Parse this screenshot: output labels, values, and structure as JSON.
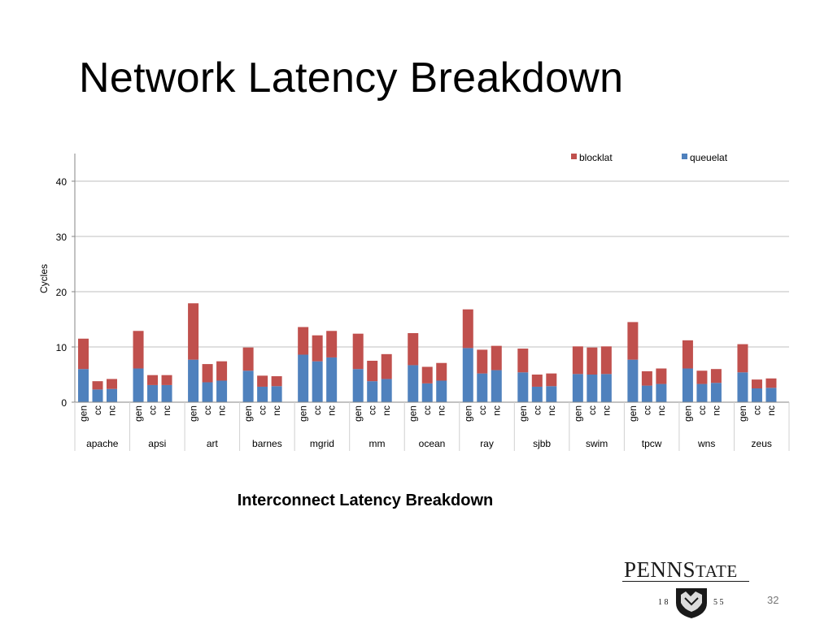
{
  "slide": {
    "title": "Network Latency Breakdown",
    "caption": "Interconnect Latency Breakdown",
    "page_number": "32",
    "logo": {
      "wordmark_part1": "PENN",
      "wordmark_part2": "S",
      "wordmark_part3": "TATE",
      "year_left": "1 8",
      "year_right": "5 5"
    }
  },
  "colors": {
    "blocklat": "#C0504D",
    "queuelat": "#4F81BD",
    "gridline": "#BFBFBF",
    "axis": "#868686"
  },
  "chart_data": {
    "type": "bar",
    "stacked": true,
    "title": "",
    "ylabel": "Cycles",
    "xlabel": "",
    "ylim": [
      0,
      45
    ],
    "yticks": [
      0,
      10,
      20,
      30,
      40
    ],
    "grid": true,
    "legend_position": "top-right",
    "groups": [
      "apache",
      "apsi",
      "art",
      "barnes",
      "mgrid",
      "mm",
      "ocean",
      "ray",
      "sjbb",
      "swim",
      "tpcw",
      "wns",
      "zeus"
    ],
    "bars_per_group": [
      "gen",
      "cc",
      "nc"
    ],
    "series": [
      {
        "name": "blocklat",
        "values": [
          5.5,
          1.5,
          1.8,
          6.8,
          1.8,
          1.8,
          10.2,
          3.3,
          3.5,
          4.2,
          2.0,
          1.8,
          5.0,
          4.7,
          4.8,
          6.4,
          3.7,
          4.5,
          5.8,
          3.0,
          3.2,
          7.0,
          4.3,
          4.4,
          4.3,
          2.2,
          2.3,
          5.0,
          4.9,
          5.0,
          6.8,
          2.6,
          2.8,
          5.1,
          2.4,
          2.5,
          5.1,
          1.6,
          1.7
        ]
      },
      {
        "name": "queuelat",
        "values": [
          6.0,
          2.3,
          2.4,
          6.1,
          3.1,
          3.1,
          7.7,
          3.6,
          3.9,
          5.7,
          2.8,
          2.9,
          8.6,
          7.4,
          8.1,
          6.0,
          3.8,
          4.2,
          6.7,
          3.4,
          3.9,
          9.8,
          5.2,
          5.8,
          5.4,
          2.8,
          2.9,
          5.1,
          5.0,
          5.1,
          7.7,
          3.0,
          3.3,
          6.1,
          3.3,
          3.5,
          5.4,
          2.5,
          2.6
        ]
      }
    ]
  }
}
